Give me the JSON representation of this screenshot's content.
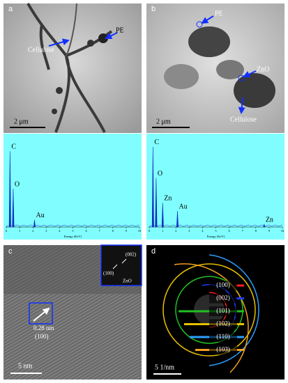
{
  "panel_a": {
    "label": "a",
    "cellulose": "Cellulose",
    "pe": "PE",
    "scale_bar": "2 μm"
  },
  "panel_b": {
    "label": "b",
    "pe": "PE",
    "zno": "ZnO",
    "cellulose": "Cellulose",
    "scale_bar": "2 μm"
  },
  "spectra": [
    {
      "xlim": [
        0,
        10
      ],
      "xticks": [
        0,
        1,
        2,
        3,
        4,
        5,
        6,
        7,
        8,
        9,
        10
      ],
      "xlabel": "Energy (KeV)",
      "peaks": [
        {
          "label": "C",
          "energy": 0.28,
          "intensity": 85
        },
        {
          "label": "O",
          "energy": 0.52,
          "intensity": 43
        },
        {
          "label": "Au",
          "energy": 2.12,
          "intensity": 8
        }
      ]
    },
    {
      "xlim": [
        0,
        10
      ],
      "xticks": [
        0,
        1,
        2,
        3,
        4,
        5,
        6,
        7,
        8,
        9,
        10
      ],
      "xlabel": "Energy (KeV)",
      "peaks": [
        {
          "label": "C",
          "energy": 0.28,
          "intensity": 90
        },
        {
          "label": "O",
          "energy": 0.52,
          "intensity": 55
        },
        {
          "label": "Zn",
          "energy": 1.01,
          "intensity": 27
        },
        {
          "label": "Au",
          "energy": 2.12,
          "intensity": 18
        },
        {
          "label": "Zn",
          "energy": 8.63,
          "intensity": 3
        }
      ]
    }
  ],
  "panel_c": {
    "label": "c",
    "inset": {
      "p002": "(002)",
      "p100": "(100)",
      "name": "ZnO"
    },
    "spacing": "0.28 nm",
    "plane": "(100)",
    "scale_bar": "5 nm"
  },
  "panel_d": {
    "label": "d",
    "rings": [
      "(100)",
      "(002)",
      "(101)",
      "(102)",
      "(110)",
      "(103)"
    ],
    "scale_bar": "5 1/nm"
  }
}
